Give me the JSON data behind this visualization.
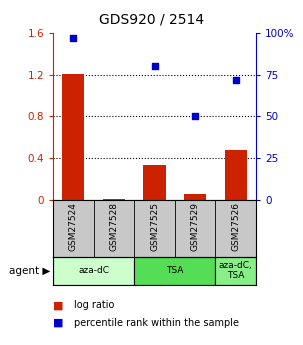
{
  "title": "GDS920 / 2514",
  "categories": [
    "GSM27524",
    "GSM27528",
    "GSM27525",
    "GSM27529",
    "GSM27526"
  ],
  "bar_values": [
    1.21,
    0.01,
    0.335,
    0.055,
    0.475
  ],
  "scatter_values": [
    0.97,
    null,
    0.8,
    0.5,
    0.715
  ],
  "ylim_left": [
    0,
    1.6
  ],
  "ylim_right": [
    0,
    1.0
  ],
  "yticks_left": [
    0,
    0.4,
    0.8,
    1.2,
    1.6
  ],
  "ytick_labels_left": [
    "0",
    "0.4",
    "0.8",
    "1.2",
    "1.6"
  ],
  "ytick_labels_right": [
    "0",
    "25",
    "50",
    "75",
    "100%"
  ],
  "bar_color": "#cc2200",
  "scatter_color": "#0000cc",
  "agent_groups": [
    {
      "label": "aza-dC",
      "indices": [
        0,
        1
      ],
      "color": "#ccffcc"
    },
    {
      "label": "TSA",
      "indices": [
        2,
        3
      ],
      "color": "#55dd55"
    },
    {
      "label": "aza-dC,\nTSA",
      "indices": [
        4
      ],
      "color": "#88ee88"
    }
  ],
  "left_axis_color": "#cc2200",
  "right_axis_color": "#0000cc",
  "legend_bar_label": "log ratio",
  "legend_scatter_label": "percentile rank within the sample",
  "agent_label": "agent",
  "background_color": "#ffffff",
  "bar_width": 0.55,
  "tick_label_bg": "#c8c8c8",
  "grid_lines": [
    0.4,
    0.8,
    1.2
  ]
}
